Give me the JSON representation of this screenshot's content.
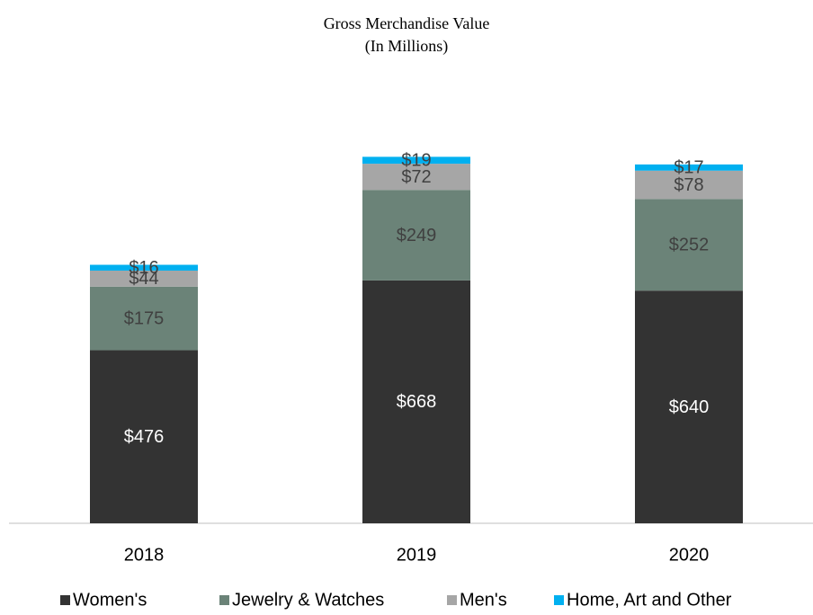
{
  "chart_data": {
    "type": "stacked_bar",
    "title": "Gross Merchandise Value",
    "subtitle": "(In Millions)",
    "categories": [
      "2018",
      "2019",
      "2020"
    ],
    "series": [
      {
        "name": "Women's",
        "color": "#333333",
        "values": [
          476,
          668,
          640
        ],
        "value_labels": [
          "$476",
          "$668",
          "$640"
        ]
      },
      {
        "name": "Jewelry & Watches",
        "color": "#6b8378",
        "values": [
          175,
          249,
          252
        ],
        "value_labels": [
          "$175",
          "$249",
          "$252"
        ]
      },
      {
        "name": "Men's",
        "color": "#a6a6a6",
        "values": [
          44,
          72,
          78
        ],
        "value_labels": [
          "$44",
          "$72",
          "$78"
        ]
      },
      {
        "name": "Home, Art and Other",
        "color": "#00b0f0",
        "values": [
          16,
          19,
          17
        ],
        "value_labels": [
          "$16",
          "$19",
          "$17"
        ]
      }
    ],
    "ylim": [
      0,
      1150
    ],
    "legend": "bottom"
  }
}
